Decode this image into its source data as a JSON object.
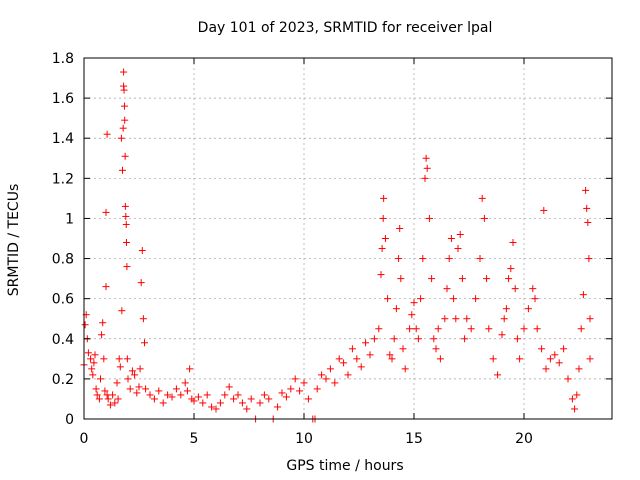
{
  "chart_data": {
    "type": "scatter",
    "title": "Day 101 of 2023, SRMTID for receiver lpal",
    "xlabel": "GPS time / hours",
    "ylabel": "SRMTID / TECUs",
    "xlim": [
      0,
      24
    ],
    "ylim": [
      0,
      1.8
    ],
    "xticks": [
      0,
      5,
      10,
      15,
      20
    ],
    "yticks": [
      0,
      0.2,
      0.4,
      0.6,
      0.8,
      1,
      1.2,
      1.4,
      1.6,
      1.8
    ],
    "xtick_labels": [
      "0",
      "5",
      "10",
      "15",
      "20"
    ],
    "ytick_labels": [
      "0",
      "0.2",
      "0.4",
      "0.6",
      "0.8",
      "1",
      "1.2",
      "1.4",
      "1.6",
      "1.8"
    ],
    "grid": true,
    "marker": "+",
    "color": "#ff0000",
    "series": [
      {
        "name": "SRMTID",
        "points": [
          [
            0.0,
            0.27
          ],
          [
            0.05,
            0.47
          ],
          [
            0.1,
            0.52
          ],
          [
            0.15,
            0.4
          ],
          [
            0.2,
            0.33
          ],
          [
            0.3,
            0.3
          ],
          [
            0.35,
            0.25
          ],
          [
            0.4,
            0.22
          ],
          [
            0.45,
            0.28
          ],
          [
            0.5,
            0.32
          ],
          [
            0.55,
            0.15
          ],
          [
            0.6,
            0.12
          ],
          [
            0.7,
            0.1
          ],
          [
            0.75,
            0.2
          ],
          [
            0.8,
            0.42
          ],
          [
            0.85,
            0.48
          ],
          [
            0.9,
            0.3
          ],
          [
            0.95,
            0.14
          ],
          [
            1.0,
            1.03
          ],
          [
            1.0,
            0.66
          ],
          [
            1.05,
            1.42
          ],
          [
            1.05,
            0.12
          ],
          [
            1.1,
            0.1
          ],
          [
            1.2,
            0.07
          ],
          [
            1.3,
            0.12
          ],
          [
            1.4,
            0.08
          ],
          [
            1.5,
            0.18
          ],
          [
            1.55,
            0.1
          ],
          [
            1.6,
            0.3
          ],
          [
            1.65,
            0.26
          ],
          [
            1.7,
            1.4
          ],
          [
            1.72,
            0.54
          ],
          [
            1.75,
            1.24
          ],
          [
            1.78,
            1.45
          ],
          [
            1.8,
            1.73
          ],
          [
            1.8,
            1.66
          ],
          [
            1.82,
            1.64
          ],
          [
            1.84,
            1.56
          ],
          [
            1.85,
            1.49
          ],
          [
            1.87,
            1.31
          ],
          [
            1.88,
            1.06
          ],
          [
            1.9,
            1.01
          ],
          [
            1.92,
            0.97
          ],
          [
            1.93,
            0.88
          ],
          [
            1.95,
            0.76
          ],
          [
            1.97,
            0.3
          ],
          [
            2.0,
            0.2
          ],
          [
            2.1,
            0.15
          ],
          [
            2.2,
            0.24
          ],
          [
            2.3,
            0.22
          ],
          [
            2.4,
            0.13
          ],
          [
            2.5,
            0.16
          ],
          [
            2.55,
            0.25
          ],
          [
            2.6,
            0.68
          ],
          [
            2.65,
            0.84
          ],
          [
            2.7,
            0.5
          ],
          [
            2.75,
            0.38
          ],
          [
            2.8,
            0.15
          ],
          [
            3.0,
            0.12
          ],
          [
            3.2,
            0.1
          ],
          [
            3.4,
            0.14
          ],
          [
            3.6,
            0.08
          ],
          [
            3.8,
            0.12
          ],
          [
            4.0,
            0.11
          ],
          [
            4.2,
            0.15
          ],
          [
            4.4,
            0.12
          ],
          [
            4.6,
            0.18
          ],
          [
            4.7,
            0.14
          ],
          [
            4.8,
            0.25
          ],
          [
            4.9,
            0.1
          ],
          [
            5.0,
            0.09
          ],
          [
            5.2,
            0.11
          ],
          [
            5.4,
            0.08
          ],
          [
            5.6,
            0.12
          ],
          [
            5.8,
            0.06
          ],
          [
            6.0,
            0.05
          ],
          [
            6.2,
            0.08
          ],
          [
            6.4,
            0.12
          ],
          [
            6.6,
            0.16
          ],
          [
            6.8,
            0.1
          ],
          [
            7.0,
            0.12
          ],
          [
            7.2,
            0.08
          ],
          [
            7.4,
            0.05
          ],
          [
            7.6,
            0.1
          ],
          [
            7.8,
            0.0
          ],
          [
            8.0,
            0.08
          ],
          [
            8.2,
            0.12
          ],
          [
            8.4,
            0.1
          ],
          [
            8.6,
            0.0
          ],
          [
            8.8,
            0.06
          ],
          [
            9.0,
            0.13
          ],
          [
            9.2,
            0.11
          ],
          [
            9.4,
            0.15
          ],
          [
            9.6,
            0.2
          ],
          [
            9.8,
            0.14
          ],
          [
            10.0,
            0.18
          ],
          [
            10.2,
            0.1
          ],
          [
            10.4,
            0.0
          ],
          [
            10.5,
            0.0
          ],
          [
            10.6,
            0.15
          ],
          [
            10.8,
            0.22
          ],
          [
            11.0,
            0.2
          ],
          [
            11.2,
            0.25
          ],
          [
            11.4,
            0.18
          ],
          [
            11.6,
            0.3
          ],
          [
            11.8,
            0.28
          ],
          [
            12.0,
            0.22
          ],
          [
            12.2,
            0.35
          ],
          [
            12.4,
            0.3
          ],
          [
            12.6,
            0.26
          ],
          [
            12.8,
            0.38
          ],
          [
            13.0,
            0.32
          ],
          [
            13.2,
            0.4
          ],
          [
            13.4,
            0.45
          ],
          [
            13.5,
            0.72
          ],
          [
            13.55,
            0.85
          ],
          [
            13.6,
            1.0
          ],
          [
            13.62,
            1.1
          ],
          [
            13.7,
            0.9
          ],
          [
            13.8,
            0.6
          ],
          [
            13.9,
            0.32
          ],
          [
            14.0,
            0.3
          ],
          [
            14.1,
            0.4
          ],
          [
            14.2,
            0.55
          ],
          [
            14.3,
            0.8
          ],
          [
            14.35,
            0.95
          ],
          [
            14.4,
            0.7
          ],
          [
            14.5,
            0.35
          ],
          [
            14.6,
            0.25
          ],
          [
            14.8,
            0.45
          ],
          [
            14.9,
            0.52
          ],
          [
            15.0,
            0.58
          ],
          [
            15.1,
            0.45
          ],
          [
            15.2,
            0.4
          ],
          [
            15.3,
            0.6
          ],
          [
            15.4,
            0.8
          ],
          [
            15.5,
            1.2
          ],
          [
            15.55,
            1.3
          ],
          [
            15.6,
            1.25
          ],
          [
            15.7,
            1.0
          ],
          [
            15.8,
            0.7
          ],
          [
            15.9,
            0.4
          ],
          [
            16.0,
            0.35
          ],
          [
            16.1,
            0.45
          ],
          [
            16.2,
            0.3
          ],
          [
            16.4,
            0.5
          ],
          [
            16.5,
            0.65
          ],
          [
            16.6,
            0.8
          ],
          [
            16.7,
            0.9
          ],
          [
            16.8,
            0.6
          ],
          [
            16.9,
            0.5
          ],
          [
            17.0,
            0.85
          ],
          [
            17.1,
            0.92
          ],
          [
            17.2,
            0.7
          ],
          [
            17.3,
            0.4
          ],
          [
            17.4,
            0.5
          ],
          [
            17.6,
            0.45
          ],
          [
            17.8,
            0.6
          ],
          [
            18.0,
            0.8
          ],
          [
            18.1,
            1.1
          ],
          [
            18.2,
            1.0
          ],
          [
            18.3,
            0.7
          ],
          [
            18.4,
            0.45
          ],
          [
            18.6,
            0.3
          ],
          [
            18.8,
            0.22
          ],
          [
            19.0,
            0.42
          ],
          [
            19.1,
            0.5
          ],
          [
            19.2,
            0.55
          ],
          [
            19.3,
            0.7
          ],
          [
            19.4,
            0.75
          ],
          [
            19.5,
            0.88
          ],
          [
            19.6,
            0.65
          ],
          [
            19.7,
            0.4
          ],
          [
            19.8,
            0.3
          ],
          [
            20.0,
            0.45
          ],
          [
            20.2,
            0.55
          ],
          [
            20.4,
            0.65
          ],
          [
            20.5,
            0.6
          ],
          [
            20.6,
            0.45
          ],
          [
            20.8,
            0.35
          ],
          [
            20.9,
            1.04
          ],
          [
            21.0,
            0.25
          ],
          [
            21.2,
            0.3
          ],
          [
            21.4,
            0.32
          ],
          [
            21.6,
            0.28
          ],
          [
            21.8,
            0.35
          ],
          [
            22.0,
            0.2
          ],
          [
            22.2,
            0.1
          ],
          [
            22.3,
            0.05
          ],
          [
            22.4,
            0.12
          ],
          [
            22.5,
            0.25
          ],
          [
            22.6,
            0.45
          ],
          [
            22.7,
            0.62
          ],
          [
            22.8,
            1.14
          ],
          [
            22.85,
            1.05
          ],
          [
            22.9,
            0.98
          ],
          [
            22.95,
            0.8
          ],
          [
            23.0,
            0.5
          ],
          [
            23.0,
            0.3
          ]
        ]
      }
    ]
  }
}
